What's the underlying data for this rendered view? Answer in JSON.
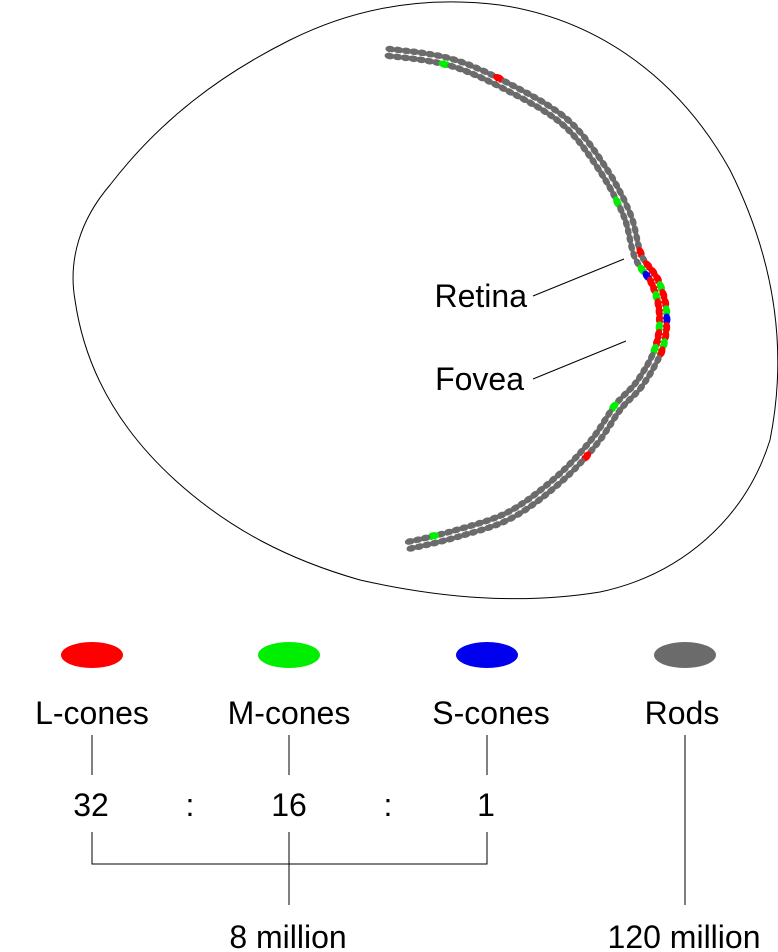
{
  "labels": {
    "retina": "Retina",
    "fovea": "Fovea"
  },
  "legend": [
    {
      "key": "l",
      "label": "L-cones",
      "color": "#ff0000"
    },
    {
      "key": "m",
      "label": "M-cones",
      "color": "#00ee00"
    },
    {
      "key": "s",
      "label": "S-cones",
      "color": "#0000ee"
    },
    {
      "key": "rod",
      "label": "Rods",
      "color": "#6b6b6b"
    }
  ],
  "ratio": {
    "l": "32",
    "m": "16",
    "s": "1",
    "separator": ":"
  },
  "totals": {
    "cones": "8 million",
    "rods": "120 million"
  }
}
